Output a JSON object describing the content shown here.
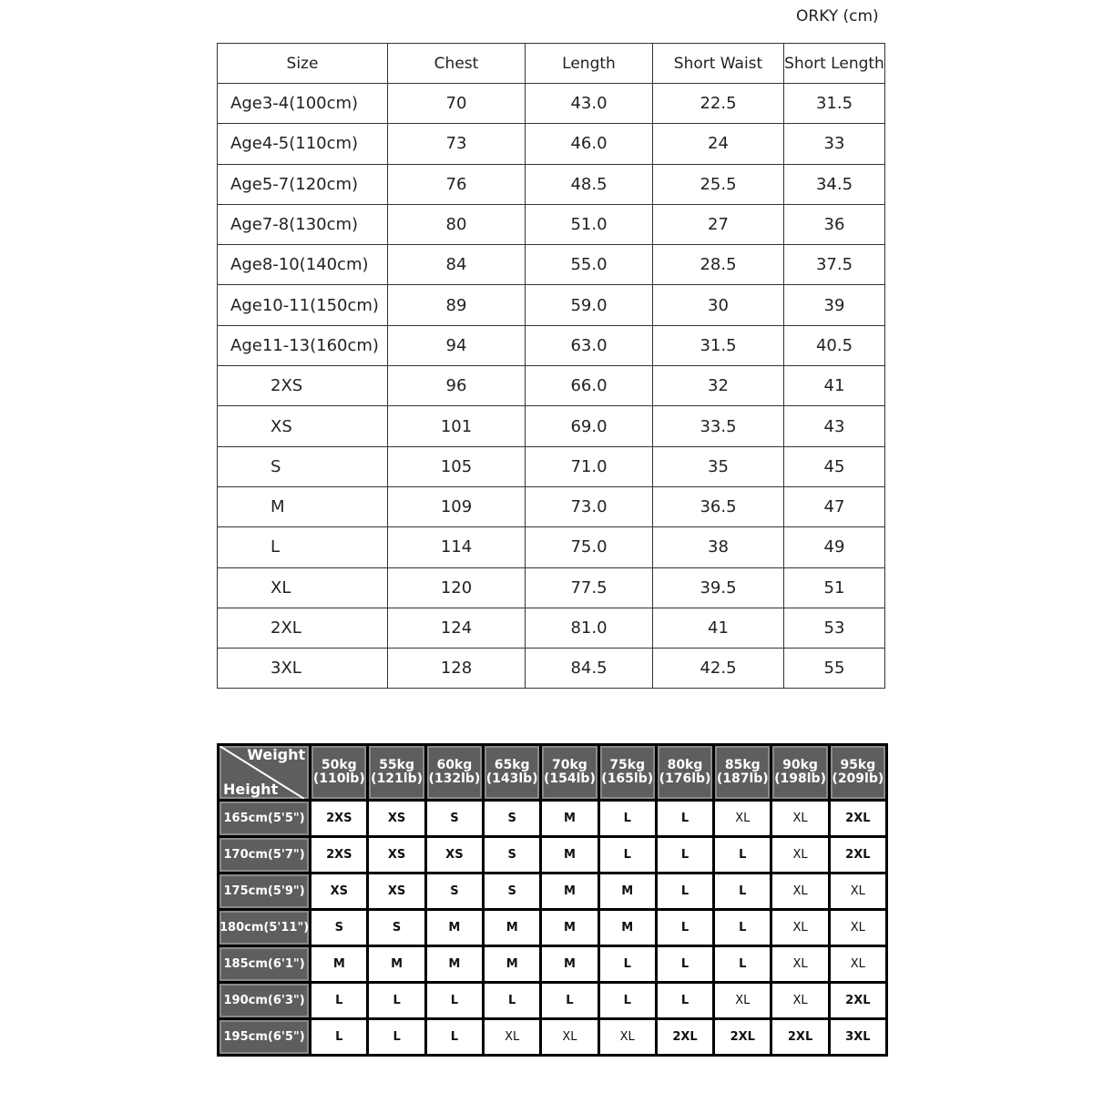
{
  "unit_label": "ORKY (cm)",
  "measurements": {
    "headers": [
      "Size",
      "Chest",
      "Length",
      "Short Waist",
      "Short Length"
    ],
    "rows": [
      [
        "Age3-4(100cm)",
        "70",
        "43.0",
        "22.5",
        "31.5"
      ],
      [
        "Age4-5(110cm)",
        "73",
        "46.0",
        "24",
        "33"
      ],
      [
        "Age5-7(120cm)",
        "76",
        "48.5",
        "25.5",
        "34.5"
      ],
      [
        "Age7-8(130cm)",
        "80",
        "51.0",
        "27",
        "36"
      ],
      [
        "Age8-10(140cm)",
        "84",
        "55.0",
        "28.5",
        "37.5"
      ],
      [
        "Age10-11(150cm)",
        "89",
        "59.0",
        "30",
        "39"
      ],
      [
        "Age11-13(160cm)",
        "94",
        "63.0",
        "31.5",
        "40.5"
      ],
      [
        "2XS",
        "96",
        "66.0",
        "32",
        "41"
      ],
      [
        "XS",
        "101",
        "69.0",
        "33.5",
        "43"
      ],
      [
        "S",
        "105",
        "71.0",
        "35",
        "45"
      ],
      [
        "M",
        "109",
        "73.0",
        "36.5",
        "47"
      ],
      [
        "L",
        "114",
        "75.0",
        "38",
        "49"
      ],
      [
        "XL",
        "120",
        "77.5",
        "39.5",
        "51"
      ],
      [
        "2XL",
        "124",
        "81.0",
        "41",
        "53"
      ],
      [
        "3XL",
        "128",
        "84.5",
        "42.5",
        "55"
      ]
    ]
  },
  "fit_guide": {
    "corner_weight": "Weight",
    "corner_height": "Height",
    "weights": [
      [
        "50kg",
        "(110lb)"
      ],
      [
        "55kg",
        "(121lb)"
      ],
      [
        "60kg",
        "(132lb)"
      ],
      [
        "65kg",
        "(143lb)"
      ],
      [
        "70kg",
        "(154lb)"
      ],
      [
        "75kg",
        "(165lb)"
      ],
      [
        "80kg",
        "(176lb)"
      ],
      [
        "85kg",
        "(187lb)"
      ],
      [
        "90kg",
        "(198lb)"
      ],
      [
        "95kg",
        "(209lb)"
      ]
    ],
    "rows": [
      {
        "height": "165cm(5'5\")",
        "sizes": [
          "2XS",
          "XS",
          "S",
          "S",
          "M",
          "L",
          "L",
          "XL",
          "XL",
          "2XL"
        ]
      },
      {
        "height": "170cm(5'7\")",
        "sizes": [
          "2XS",
          "XS",
          "XS",
          "S",
          "M",
          "L",
          "L",
          "L",
          "XL",
          "2XL"
        ]
      },
      {
        "height": "175cm(5'9\")",
        "sizes": [
          "XS",
          "XS",
          "S",
          "S",
          "M",
          "M",
          "L",
          "L",
          "XL",
          "XL"
        ]
      },
      {
        "height": "180cm(5'11\")",
        "sizes": [
          "S",
          "S",
          "M",
          "M",
          "M",
          "M",
          "L",
          "L",
          "XL",
          "XL"
        ]
      },
      {
        "height": "185cm(6'1\")",
        "sizes": [
          "M",
          "M",
          "M",
          "M",
          "M",
          "L",
          "L",
          "L",
          "XL",
          "XL"
        ]
      },
      {
        "height": "190cm(6'3\")",
        "sizes": [
          "L",
          "L",
          "L",
          "L",
          "L",
          "L",
          "L",
          "XL",
          "XL",
          "2XL"
        ]
      },
      {
        "height": "195cm(6'5\")",
        "sizes": [
          "L",
          "L",
          "L",
          "XL",
          "XL",
          "XL",
          "2XL",
          "2XL",
          "2XL",
          "3XL"
        ]
      }
    ]
  }
}
